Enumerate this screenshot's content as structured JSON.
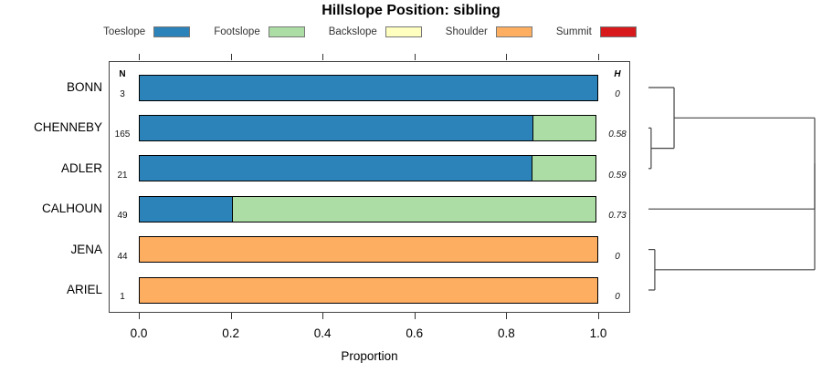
{
  "title": "Hillslope Position: sibling",
  "legend": {
    "items": [
      {
        "label": "Toeslope",
        "color": "#2b83ba"
      },
      {
        "label": "Footslope",
        "color": "#abdda4"
      },
      {
        "label": "Backslope",
        "color": "#ffffbf"
      },
      {
        "label": "Shoulder",
        "color": "#fdae61"
      },
      {
        "label": "Summit",
        "color": "#d7191c"
      }
    ]
  },
  "columns": {
    "n_header": "N",
    "h_header": "H"
  },
  "chart_data": {
    "type": "bar",
    "orientation": "horizontal",
    "title": "Hillslope Position: sibling",
    "xlabel": "Proportion",
    "xlim": [
      0,
      1
    ],
    "x_ticks": [
      0.0,
      0.2,
      0.4,
      0.6,
      0.8,
      1.0
    ],
    "x_tick_labels": [
      "0.0",
      "0.2",
      "0.4",
      "0.6",
      "0.8",
      "1.0"
    ],
    "categories": [
      "Toeslope",
      "Footslope",
      "Backslope",
      "Shoulder",
      "Summit"
    ],
    "colors": {
      "Toeslope": "#2b83ba",
      "Footslope": "#abdda4",
      "Backslope": "#ffffbf",
      "Shoulder": "#fdae61",
      "Summit": "#d7191c"
    },
    "rows": [
      {
        "label": "BONN",
        "n": 3,
        "h": "0",
        "segments": [
          {
            "category": "Toeslope",
            "value": 1.0
          }
        ]
      },
      {
        "label": "CHENNEBY",
        "n": 165,
        "h": "0.58",
        "segments": [
          {
            "category": "Toeslope",
            "value": 0.86
          },
          {
            "category": "Footslope",
            "value": 0.14
          }
        ]
      },
      {
        "label": "ADLER",
        "n": 21,
        "h": "0.59",
        "segments": [
          {
            "category": "Toeslope",
            "value": 0.857
          },
          {
            "category": "Footslope",
            "value": 0.143
          }
        ]
      },
      {
        "label": "CALHOUN",
        "n": 49,
        "h": "0.73",
        "segments": [
          {
            "category": "Toeslope",
            "value": 0.205
          },
          {
            "category": "Footslope",
            "value": 0.795
          }
        ]
      },
      {
        "label": "JENA",
        "n": 44,
        "h": "0",
        "segments": [
          {
            "category": "Shoulder",
            "value": 1.0
          }
        ]
      },
      {
        "label": "ARIEL",
        "n": 1,
        "h": "0",
        "segments": [
          {
            "category": "Shoulder",
            "value": 1.0
          }
        ]
      }
    ],
    "dendrogram": {
      "merges": [
        {
          "children": [
            "CHENNEBY",
            "ADLER"
          ],
          "height": 0.016
        },
        {
          "children": [
            "BONN",
            "m0"
          ],
          "height": 0.154
        },
        {
          "children": [
            "JENA",
            "ARIEL"
          ],
          "height": 0.038
        },
        {
          "children": [
            "m1",
            "CALHOUN"
          ],
          "height": 1.0
        },
        {
          "children": [
            "m3",
            "m2"
          ],
          "height": 1.0
        }
      ]
    }
  }
}
